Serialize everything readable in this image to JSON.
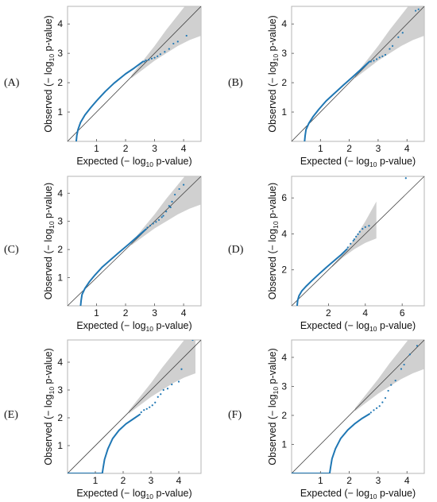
{
  "figure": {
    "colors": {
      "points": "#1f77b4",
      "band": "#c8c8c8",
      "diagonal": "#444444",
      "frame": "#b5b5b5"
    }
  },
  "chart_data": [
    {
      "type": "scatter",
      "panel_label": "(A)",
      "xlabel": "Expected (− log10 p-value)",
      "ylabel": "Observed (− log10 p-value)",
      "xlim": [
        0,
        4.6
      ],
      "ylim": [
        0,
        4.6
      ],
      "xticks": [
        1,
        2,
        3,
        4
      ],
      "yticks": [
        1,
        2,
        3,
        4
      ],
      "grid": false,
      "reference_line": "y = x",
      "confidence_band": {
        "x": [
          2.2,
          2.6,
          3.0,
          3.4,
          3.8,
          4.2,
          4.6
        ],
        "lower": [
          2.15,
          2.45,
          2.75,
          3.0,
          3.25,
          3.45,
          3.6
        ],
        "upper": [
          2.25,
          2.75,
          3.25,
          3.8,
          4.3,
          4.8,
          5.1
        ]
      },
      "curve": {
        "x": [
          0.3,
          0.32,
          0.36,
          0.45,
          0.6,
          0.8,
          1.0,
          1.3,
          1.6,
          2.0,
          2.3,
          2.6
        ],
        "y": [
          0,
          0.2,
          0.4,
          0.65,
          0.9,
          1.15,
          1.38,
          1.7,
          1.98,
          2.3,
          2.5,
          2.72
        ]
      },
      "points": [
        [
          2.65,
          2.72
        ],
        [
          2.7,
          2.76
        ],
        [
          2.8,
          2.78
        ],
        [
          2.9,
          2.82
        ],
        [
          3.0,
          2.85
        ],
        [
          3.1,
          2.9
        ],
        [
          3.2,
          2.97
        ],
        [
          3.35,
          3.05
        ],
        [
          3.5,
          3.15
        ],
        [
          3.65,
          3.33
        ],
        [
          3.8,
          3.4
        ],
        [
          4.1,
          3.6
        ]
      ]
    },
    {
      "type": "scatter",
      "panel_label": "(B)",
      "xlabel": "Expected (− log10 p-value)",
      "ylabel": "Observed (− log10 p-value)",
      "xlim": [
        0,
        4.6
      ],
      "ylim": [
        0,
        4.6
      ],
      "xticks": [
        1,
        2,
        3,
        4
      ],
      "yticks": [
        1,
        2,
        3,
        4
      ],
      "grid": false,
      "reference_line": "y = x",
      "confidence_band": {
        "x": [
          2.2,
          2.6,
          3.0,
          3.4,
          3.8,
          4.2,
          4.6
        ],
        "lower": [
          2.15,
          2.45,
          2.75,
          3.0,
          3.25,
          3.45,
          3.6
        ],
        "upper": [
          2.25,
          2.75,
          3.25,
          3.8,
          4.3,
          4.8,
          5.1
        ]
      },
      "curve": {
        "x": [
          0.45,
          0.47,
          0.5,
          0.6,
          0.75,
          0.95,
          1.2,
          1.5,
          1.8,
          2.1,
          2.4,
          2.7
        ],
        "y": [
          0,
          0.2,
          0.4,
          0.62,
          0.85,
          1.1,
          1.38,
          1.65,
          1.92,
          2.18,
          2.45,
          2.72
        ]
      },
      "points": [
        [
          2.75,
          2.72
        ],
        [
          2.85,
          2.75
        ],
        [
          2.95,
          2.8
        ],
        [
          3.05,
          2.86
        ],
        [
          3.15,
          2.9
        ],
        [
          3.25,
          2.95
        ],
        [
          3.4,
          3.15
        ],
        [
          3.5,
          3.25
        ],
        [
          3.7,
          3.55
        ],
        [
          3.85,
          3.7
        ],
        [
          4.3,
          4.45
        ],
        [
          4.4,
          4.5
        ]
      ]
    },
    {
      "type": "scatter",
      "panel_label": "(C)",
      "xlabel": "Expected (− log10 p-value)",
      "ylabel": "Observed (− log10 p-value)",
      "xlim": [
        0,
        4.6
      ],
      "ylim": [
        0,
        4.6
      ],
      "xticks": [
        1,
        2,
        3,
        4
      ],
      "yticks": [
        1,
        2,
        3,
        4
      ],
      "grid": false,
      "reference_line": "y = x",
      "confidence_band": {
        "x": [
          2.2,
          2.6,
          3.0,
          3.4,
          3.8,
          4.2,
          4.6
        ],
        "lower": [
          2.15,
          2.45,
          2.75,
          3.0,
          3.25,
          3.45,
          3.6
        ],
        "upper": [
          2.25,
          2.75,
          3.25,
          3.8,
          4.3,
          4.8,
          5.1
        ]
      },
      "curve": {
        "x": [
          0.45,
          0.47,
          0.5,
          0.6,
          0.75,
          0.95,
          1.2,
          1.5,
          1.8,
          2.1,
          2.4,
          2.7
        ],
        "y": [
          0,
          0.2,
          0.4,
          0.62,
          0.85,
          1.1,
          1.38,
          1.65,
          1.92,
          2.18,
          2.45,
          2.72
        ]
      },
      "points": [
        [
          2.75,
          2.78
        ],
        [
          2.85,
          2.85
        ],
        [
          2.95,
          2.92
        ],
        [
          3.05,
          2.98
        ],
        [
          3.15,
          3.05
        ],
        [
          3.25,
          3.15
        ],
        [
          3.4,
          3.35
        ],
        [
          3.5,
          3.55
        ],
        [
          3.6,
          3.7
        ],
        [
          3.7,
          3.95
        ],
        [
          3.85,
          4.15
        ],
        [
          4.0,
          4.3
        ],
        [
          3.3,
          3.2
        ],
        [
          3.55,
          3.5
        ]
      ]
    },
    {
      "type": "scatter",
      "panel_label": "(D)",
      "xlabel": "Expected (− log10 p-value)",
      "ylabel": "Observed (− log10 p-value)",
      "xlim": [
        0,
        7.2
      ],
      "ylim": [
        0,
        7.2
      ],
      "xticks": [
        2,
        4,
        6
      ],
      "yticks": [
        2,
        4,
        6
      ],
      "grid": false,
      "reference_line": "y = x",
      "confidence_band": {
        "x": [
          2.2,
          2.8,
          3.4,
          4.0,
          4.6
        ],
        "lower": [
          2.15,
          2.7,
          3.15,
          3.5,
          3.75
        ],
        "upper": [
          2.25,
          2.9,
          3.7,
          4.7,
          5.8
        ]
      },
      "curve": {
        "x": [
          0.3,
          0.33,
          0.4,
          0.55,
          0.8,
          1.1,
          1.5,
          1.9,
          2.3,
          2.7,
          3.0
        ],
        "y": [
          0,
          0.3,
          0.55,
          0.82,
          1.1,
          1.4,
          1.78,
          2.15,
          2.5,
          2.85,
          3.15
        ]
      },
      "points": [
        [
          3.05,
          3.25
        ],
        [
          3.2,
          3.45
        ],
        [
          3.35,
          3.62
        ],
        [
          3.5,
          3.85
        ],
        [
          3.6,
          3.98
        ],
        [
          3.7,
          4.12
        ],
        [
          3.85,
          4.28
        ],
        [
          4.0,
          4.38
        ],
        [
          4.2,
          4.45
        ],
        [
          3.4,
          3.7
        ],
        [
          6.2,
          7.1
        ]
      ]
    },
    {
      "type": "scatter",
      "panel_label": "(E)",
      "xlabel": "Expected (− log10 p-value)",
      "ylabel": "Observed (− log10 p-value)",
      "xlim": [
        0,
        4.8
      ],
      "ylim": [
        0,
        4.8
      ],
      "xticks": [
        1,
        2,
        3,
        4
      ],
      "yticks": [
        1,
        2,
        3,
        4
      ],
      "grid": false,
      "reference_line": "y = x",
      "confidence_band": {
        "x": [
          2.2,
          2.6,
          3.0,
          3.4,
          3.8,
          4.2,
          4.6
        ],
        "lower": [
          2.15,
          2.45,
          2.75,
          3.0,
          3.25,
          3.45,
          3.6
        ],
        "upper": [
          2.25,
          2.75,
          3.25,
          3.8,
          4.3,
          4.8,
          5.1
        ]
      },
      "curve": {
        "x": [
          0.0,
          1.25,
          1.28,
          1.33,
          1.45,
          1.62,
          1.85,
          2.1,
          2.35,
          2.6
        ],
        "y": [
          0.0,
          0.0,
          0.2,
          0.5,
          0.88,
          1.25,
          1.55,
          1.78,
          1.95,
          2.12
        ]
      },
      "points": [
        [
          2.65,
          2.2
        ],
        [
          2.75,
          2.28
        ],
        [
          2.85,
          2.32
        ],
        [
          2.95,
          2.38
        ],
        [
          3.05,
          2.45
        ],
        [
          3.15,
          2.55
        ],
        [
          3.25,
          2.75
        ],
        [
          3.35,
          2.85
        ],
        [
          3.45,
          3.0
        ],
        [
          3.6,
          3.05
        ],
        [
          3.75,
          3.2
        ],
        [
          4.0,
          3.3
        ],
        [
          4.1,
          3.75
        ],
        [
          4.5,
          4.8
        ]
      ]
    },
    {
      "type": "scatter",
      "panel_label": "(F)",
      "xlabel": "Expected (− log10 p-value)",
      "ylabel": "Observed (− log10 p-value)",
      "xlim": [
        0,
        4.6
      ],
      "ylim": [
        0,
        4.6
      ],
      "xticks": [
        1,
        2,
        3,
        4
      ],
      "yticks": [
        1,
        2,
        3,
        4
      ],
      "grid": false,
      "reference_line": "y = x",
      "confidence_band": {
        "x": [
          2.2,
          2.6,
          3.0,
          3.4,
          3.8,
          4.2,
          4.6
        ],
        "lower": [
          2.15,
          2.45,
          2.75,
          3.0,
          3.25,
          3.45,
          3.6
        ],
        "upper": [
          2.25,
          2.75,
          3.25,
          3.8,
          4.3,
          4.8,
          5.1
        ]
      },
      "curve": {
        "x": [
          0.0,
          1.32,
          1.35,
          1.4,
          1.52,
          1.7,
          1.95,
          2.2,
          2.45,
          2.7
        ],
        "y": [
          0.0,
          0.0,
          0.2,
          0.5,
          0.85,
          1.2,
          1.5,
          1.72,
          1.9,
          2.05
        ]
      },
      "points": [
        [
          2.75,
          2.1
        ],
        [
          2.85,
          2.18
        ],
        [
          2.95,
          2.25
        ],
        [
          3.05,
          2.32
        ],
        [
          3.15,
          2.45
        ],
        [
          3.25,
          2.6
        ],
        [
          3.35,
          2.85
        ],
        [
          3.45,
          3.05
        ],
        [
          3.6,
          3.2
        ],
        [
          3.8,
          3.6
        ],
        [
          3.9,
          3.75
        ],
        [
          4.1,
          4.1
        ],
        [
          4.35,
          4.4
        ]
      ]
    }
  ]
}
